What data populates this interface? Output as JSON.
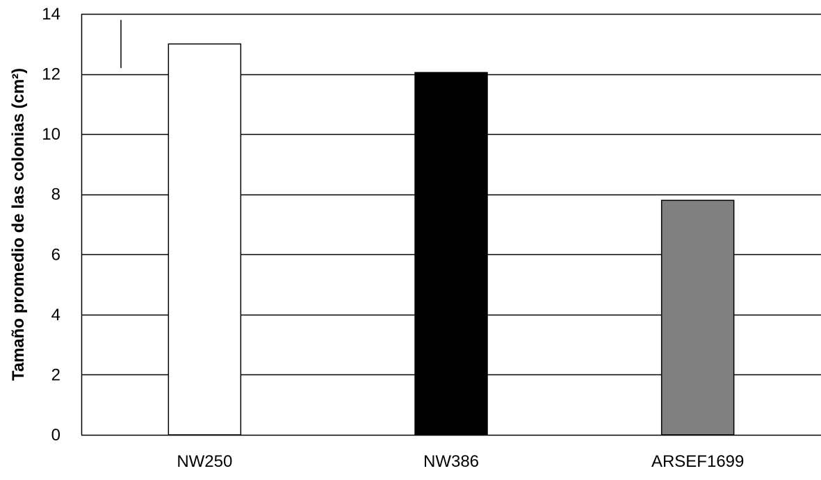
{
  "chart_data": {
    "type": "bar",
    "title": "",
    "xlabel": "",
    "ylabel": "Tamaño promedio de las colonias (cm²)",
    "categories": [
      "NW250",
      "NW386",
      "ARSEF1699"
    ],
    "values": [
      13.0,
      12.05,
      7.8
    ],
    "bar_colors": [
      "#ffffff",
      "#000000",
      "#808080"
    ],
    "bar_edge_color": "#000000",
    "ylim": [
      0,
      14
    ],
    "yticks": [
      0,
      2,
      4,
      6,
      8,
      10,
      12,
      14
    ],
    "ytick_labels": [
      "0",
      "2",
      "4",
      "6",
      "8",
      "10",
      "12",
      "14"
    ],
    "grid": "horizontal",
    "legend": "none",
    "annotations": [
      {
        "type": "vertical-line",
        "x_position": "left of NW250",
        "y_from": 12.2,
        "y_to": 13.8
      }
    ]
  }
}
